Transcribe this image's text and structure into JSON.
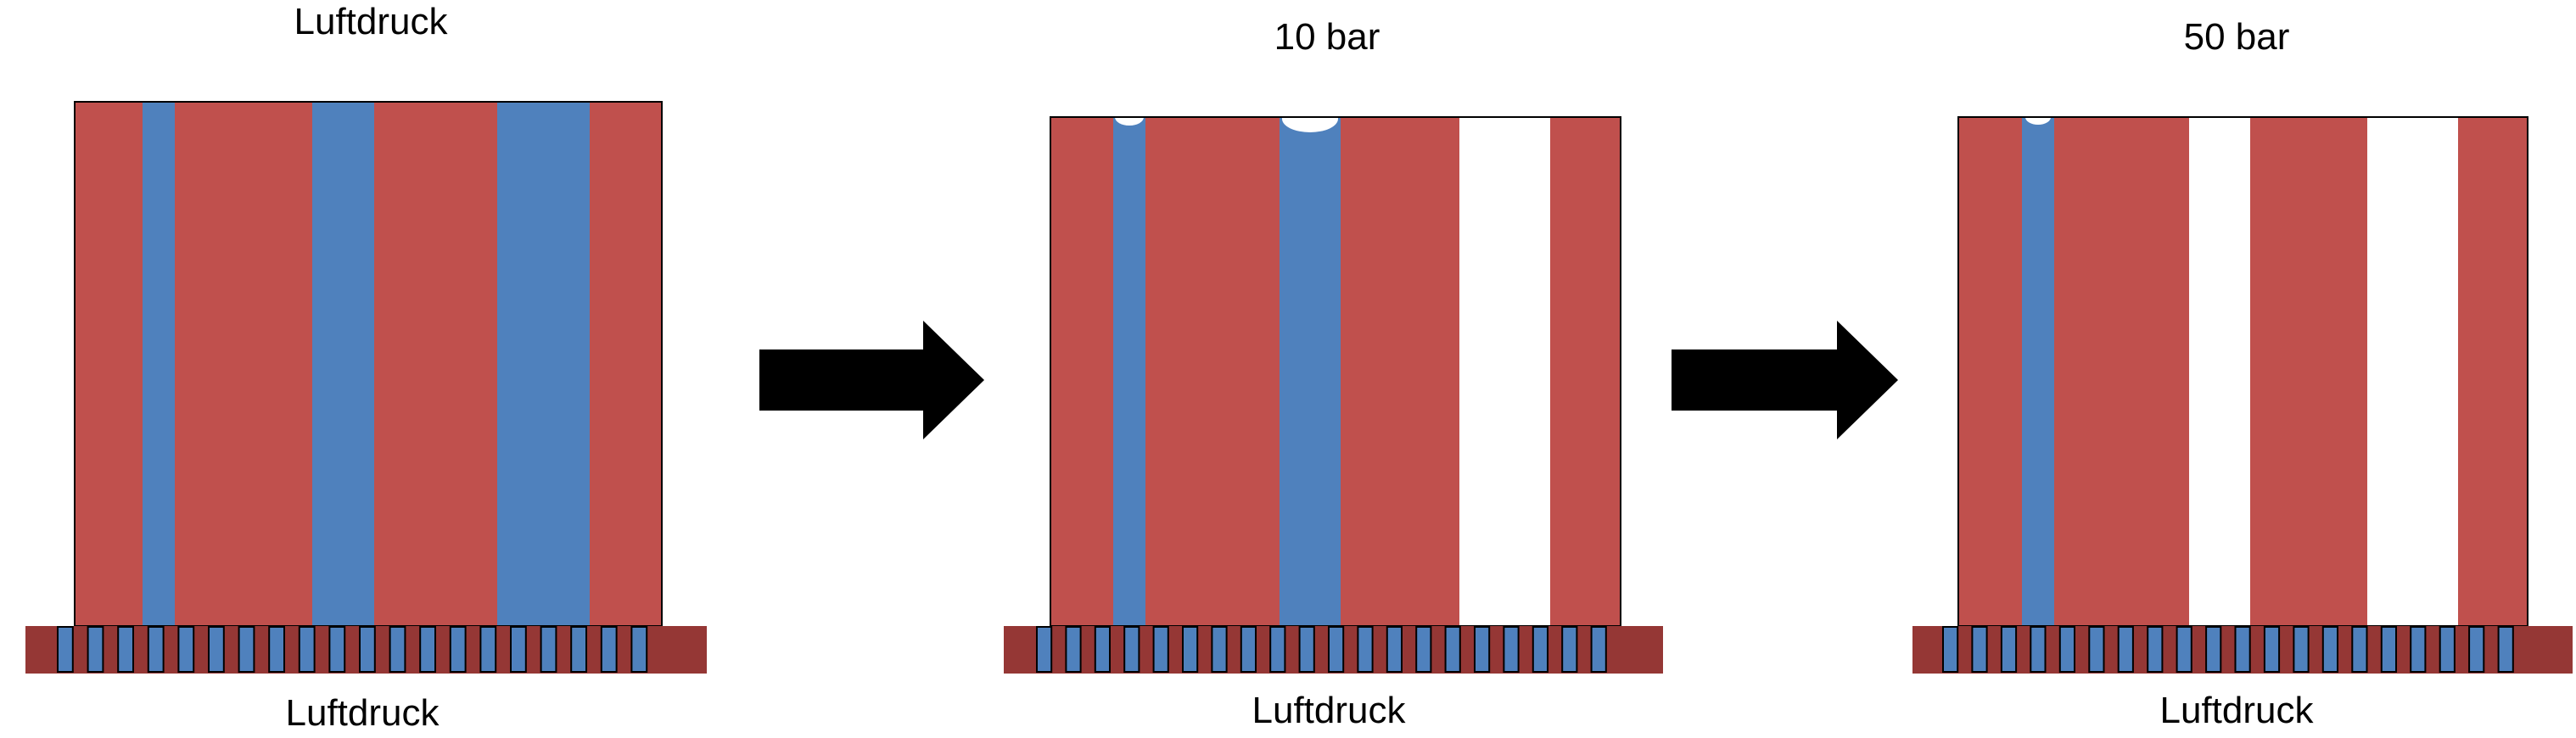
{
  "colors": {
    "red": "#C0504D",
    "blue": "#4F81BD",
    "dark_red": "#953735",
    "white": "#FFFFFF",
    "black": "#000000"
  },
  "panels": [
    {
      "top_label": "Luftdruck",
      "bottom_label": "Luftdruck",
      "channels": [
        "filled",
        "filled",
        "filled"
      ],
      "meniscus": [
        false,
        false,
        false
      ]
    },
    {
      "top_label": "10 bar",
      "bottom_label": "Luftdruck",
      "channels": [
        "filled",
        "filled",
        "empty"
      ],
      "meniscus": [
        true,
        true,
        false
      ]
    },
    {
      "top_label": "50 bar",
      "bottom_label": "Luftdruck",
      "channels": [
        "filled",
        "empty",
        "empty"
      ],
      "meniscus": [
        true,
        false,
        false
      ]
    }
  ],
  "arrows": [
    "arrow-right-icon",
    "arrow-right-icon"
  ]
}
